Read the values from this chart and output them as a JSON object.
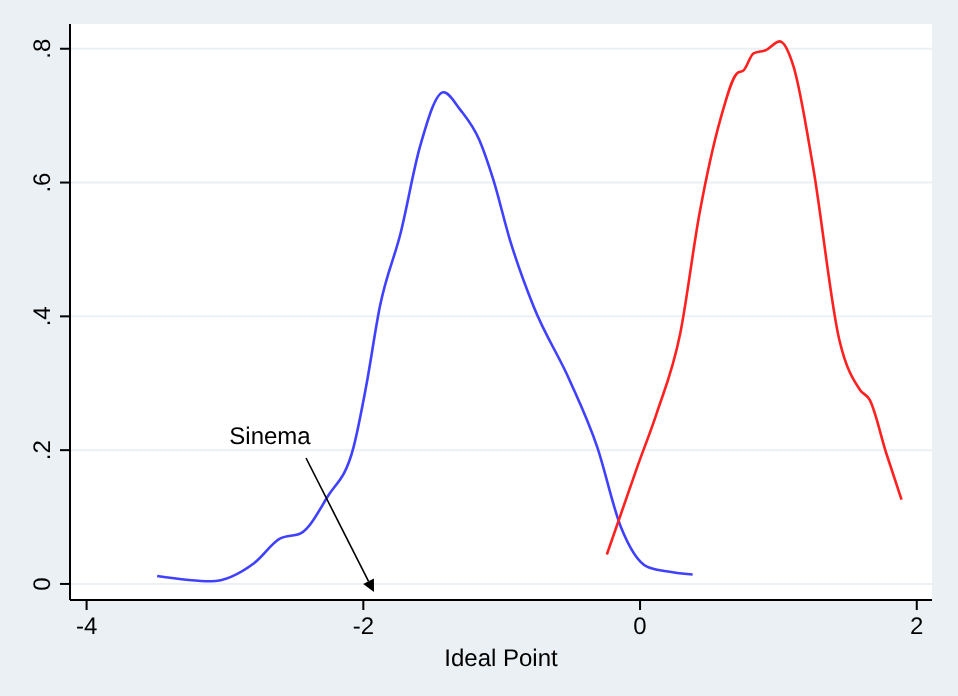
{
  "chart_data": {
    "type": "line",
    "xlabel": "Ideal Point",
    "xlim": [
      -4.12,
      2.11
    ],
    "ylim": [
      -0.024,
      0.837
    ],
    "xticks": [
      -4,
      -2,
      0,
      2
    ],
    "yticks": [
      {
        "value": 0,
        "label": "0"
      },
      {
        "value": 0.2,
        "label": ".2"
      },
      {
        "value": 0.4,
        "label": ".4"
      },
      {
        "value": 0.6,
        "label": ".6"
      },
      {
        "value": 0.8,
        "label": ".8"
      }
    ],
    "grid": "y",
    "marker": "none",
    "line_style": "solid",
    "series": [
      {
        "color": "#4040ff",
        "x": [
          -3.49,
          -3.1,
          -2.79,
          -2.6,
          -2.45,
          -2.26,
          -2.07,
          -1.98,
          -1.88,
          -1.73,
          -1.59,
          -1.42,
          -1.3,
          -1.16,
          -1.06,
          -0.94,
          -0.77,
          -0.51,
          -0.31,
          -0.14,
          0.05,
          0.19,
          0.38
        ],
        "values": [
          0.012,
          0.004,
          0.031,
          0.068,
          0.076,
          0.13,
          0.205,
          0.295,
          0.415,
          0.525,
          0.654,
          0.735,
          0.709,
          0.663,
          0.604,
          0.514,
          0.415,
          0.305,
          0.205,
          0.086,
          0.026,
          0.019,
          0.014
        ]
      },
      {
        "color": "#ff2020",
        "x": [
          -0.24,
          -0.02,
          0.12,
          0.29,
          0.43,
          0.58,
          0.7,
          0.75,
          0.82,
          0.91,
          1.01,
          1.11,
          1.25,
          1.44,
          1.59,
          1.66,
          1.78,
          1.89
        ],
        "values": [
          0.044,
          0.175,
          0.255,
          0.374,
          0.554,
          0.694,
          0.763,
          0.768,
          0.793,
          0.798,
          0.811,
          0.773,
          0.624,
          0.365,
          0.29,
          0.275,
          0.195,
          0.126
        ]
      }
    ],
    "annotations": [
      "Sinema"
    ]
  }
}
